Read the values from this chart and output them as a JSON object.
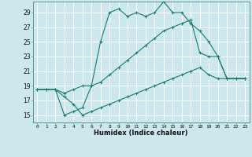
{
  "xlabel": "Humidex (Indice chaleur)",
  "bg_color": "#cce8ec",
  "grid_color": "#ffffff",
  "line_color": "#1a7a6e",
  "xlim": [
    -0.5,
    23.5
  ],
  "ylim": [
    14.0,
    30.5
  ],
  "xticks": [
    0,
    1,
    2,
    3,
    4,
    5,
    6,
    7,
    8,
    9,
    10,
    11,
    12,
    13,
    14,
    15,
    16,
    17,
    18,
    19,
    20,
    21,
    22,
    23
  ],
  "yticks": [
    15,
    17,
    19,
    21,
    23,
    25,
    27,
    29
  ],
  "hours": [
    0,
    1,
    2,
    3,
    4,
    5,
    6,
    7,
    8,
    9,
    10,
    11,
    12,
    13,
    14,
    15,
    16,
    17,
    18,
    19,
    20,
    21,
    22,
    23
  ],
  "line_max": [
    18.5,
    18.5,
    18.5,
    15.0,
    15.5,
    16.0,
    19.0,
    25.0,
    29.0,
    29.5,
    28.5,
    29.0,
    28.5,
    29.0,
    30.5,
    29.0,
    29.0,
    27.5,
    26.5,
    25.0,
    23.0,
    20.0,
    20.0,
    20.0
  ],
  "line_avg": [
    18.5,
    18.5,
    18.5,
    18.0,
    18.5,
    19.0,
    19.0,
    19.5,
    20.5,
    21.5,
    22.5,
    23.5,
    24.5,
    25.5,
    26.5,
    27.0,
    27.5,
    28.0,
    23.5,
    23.0,
    23.0,
    20.0,
    20.0,
    20.0
  ],
  "line_min": [
    18.5,
    18.5,
    18.5,
    17.5,
    16.5,
    15.0,
    15.5,
    16.0,
    16.5,
    17.0,
    17.5,
    18.0,
    18.5,
    19.0,
    19.5,
    20.0,
    20.5,
    21.0,
    21.5,
    20.5,
    20.0,
    20.0,
    20.0,
    20.0
  ]
}
